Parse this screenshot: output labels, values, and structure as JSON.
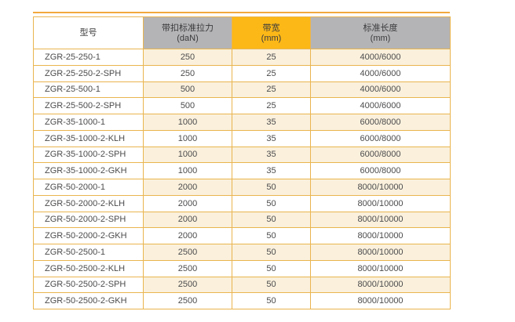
{
  "page": {
    "background": "#ffffff"
  },
  "colors": {
    "top_accent": "#f2a93c",
    "grid_line": "#eab54f",
    "header_gray": "#b4b4b6",
    "header_orange": "#fcb817",
    "row_alt_cream": "#faf0dc",
    "body_text": "#4c4c4e",
    "header_text": "#3b3b3d"
  },
  "table": {
    "header": {
      "columns": [
        {
          "id": "model",
          "label": "型号",
          "sub": "",
          "bg": "#ffffff"
        },
        {
          "id": "tension",
          "label": "带扣标准拉力",
          "sub": "(daN)",
          "bg": "#b4b4b6"
        },
        {
          "id": "width",
          "label": "带宽",
          "sub": "(mm)",
          "bg": "#fcb817"
        },
        {
          "id": "length",
          "label": "标准长度",
          "sub": "(mm)",
          "bg": "#b4b4b6"
        }
      ]
    },
    "rows": [
      {
        "model": "ZGR-25-250-1",
        "tension": "250",
        "width": "25",
        "length": "4000/6000"
      },
      {
        "model": "ZGR-25-250-2-SPH",
        "tension": "250",
        "width": "25",
        "length": "4000/6000"
      },
      {
        "model": "ZGR-25-500-1",
        "tension": "500",
        "width": "25",
        "length": "4000/6000"
      },
      {
        "model": "ZGR-25-500-2-SPH",
        "tension": "500",
        "width": "25",
        "length": "4000/6000"
      },
      {
        "model": "ZGR-35-1000-1",
        "tension": "1000",
        "width": "35",
        "length": "6000/8000"
      },
      {
        "model": "ZGR-35-1000-2-KLH",
        "tension": "1000",
        "width": "35",
        "length": "6000/8000"
      },
      {
        "model": "ZGR-35-1000-2-SPH",
        "tension": "1000",
        "width": "35",
        "length": "6000/8000"
      },
      {
        "model": "ZGR-35-1000-2-GKH",
        "tension": "1000",
        "width": "35",
        "length": "6000/8000"
      },
      {
        "model": "ZGR-50-2000-1",
        "tension": "2000",
        "width": "50",
        "length": "8000/10000"
      },
      {
        "model": "ZGR-50-2000-2-KLH",
        "tension": "2000",
        "width": "50",
        "length": "8000/10000"
      },
      {
        "model": "ZGR-50-2000-2-SPH",
        "tension": "2000",
        "width": "50",
        "length": "8000/10000"
      },
      {
        "model": "ZGR-50-2000-2-GKH",
        "tension": "2000",
        "width": "50",
        "length": "8000/10000"
      },
      {
        "model": "ZGR-50-2500-1",
        "tension": "2500",
        "width": "50",
        "length": "8000/10000"
      },
      {
        "model": "ZGR-50-2500-2-KLH",
        "tension": "2500",
        "width": "50",
        "length": "8000/10000"
      },
      {
        "model": "ZGR-50-2500-2-SPH",
        "tension": "2500",
        "width": "50",
        "length": "8000/10000"
      },
      {
        "model": "ZGR-50-2500-2-GKH",
        "tension": "2500",
        "width": "50",
        "length": "8000/10000"
      }
    ]
  }
}
